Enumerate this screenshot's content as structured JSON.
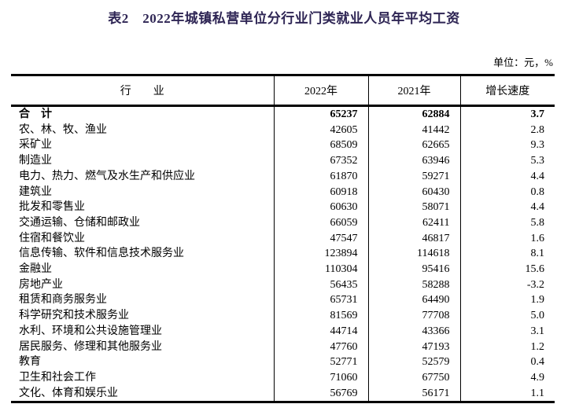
{
  "colors": {
    "title_text": "#2e2554",
    "body_text": "#000000",
    "rule": "#000000"
  },
  "title": "表2　2022年城镇私营单位分行业门类就业人员年平均工资",
  "unit_note": "单位：元，%",
  "table": {
    "columns": [
      "行　　业",
      "2022年",
      "2021年",
      "增长速度"
    ],
    "rows": [
      {
        "industry": "合　计",
        "y2022": "65237",
        "y2021": "62884",
        "growth": "3.7",
        "bold": true
      },
      {
        "industry": "农、林、牧、渔业",
        "y2022": "42605",
        "y2021": "41442",
        "growth": "2.8",
        "bold": false
      },
      {
        "industry": "采矿业",
        "y2022": "68509",
        "y2021": "62665",
        "growth": "9.3",
        "bold": false
      },
      {
        "industry": "制造业",
        "y2022": "67352",
        "y2021": "63946",
        "growth": "5.3",
        "bold": false
      },
      {
        "industry": "电力、热力、燃气及水生产和供应业",
        "y2022": "61870",
        "y2021": "59271",
        "growth": "4.4",
        "bold": false
      },
      {
        "industry": "建筑业",
        "y2022": "60918",
        "y2021": "60430",
        "growth": "0.8",
        "bold": false
      },
      {
        "industry": "批发和零售业",
        "y2022": "60630",
        "y2021": "58071",
        "growth": "4.4",
        "bold": false
      },
      {
        "industry": "交通运输、仓储和邮政业",
        "y2022": "66059",
        "y2021": "62411",
        "growth": "5.8",
        "bold": false
      },
      {
        "industry": "住宿和餐饮业",
        "y2022": "47547",
        "y2021": "46817",
        "growth": "1.6",
        "bold": false
      },
      {
        "industry": "信息传输、软件和信息技术服务业",
        "y2022": "123894",
        "y2021": "114618",
        "growth": "8.1",
        "bold": false
      },
      {
        "industry": "金融业",
        "y2022": "110304",
        "y2021": "95416",
        "growth": "15.6",
        "bold": false
      },
      {
        "industry": "房地产业",
        "y2022": "56435",
        "y2021": "58288",
        "growth": "-3.2",
        "bold": false
      },
      {
        "industry": "租赁和商务服务业",
        "y2022": "65731",
        "y2021": "64490",
        "growth": "1.9",
        "bold": false
      },
      {
        "industry": "科学研究和技术服务业",
        "y2022": "81569",
        "y2021": "77708",
        "growth": "5.0",
        "bold": false
      },
      {
        "industry": "水利、环境和公共设施管理业",
        "y2022": "44714",
        "y2021": "43366",
        "growth": "3.1",
        "bold": false
      },
      {
        "industry": "居民服务、修理和其他服务业",
        "y2022": "47760",
        "y2021": "47193",
        "growth": "1.2",
        "bold": false
      },
      {
        "industry": "教育",
        "y2022": "52771",
        "y2021": "52579",
        "growth": "0.4",
        "bold": false
      },
      {
        "industry": "卫生和社会工作",
        "y2022": "71060",
        "y2021": "67750",
        "growth": "4.9",
        "bold": false
      },
      {
        "industry": "文化、体育和娱乐业",
        "y2022": "56769",
        "y2021": "56171",
        "growth": "1.1",
        "bold": false
      }
    ]
  },
  "chart_data": {
    "type": "table",
    "title": "表2　2022年城镇私营单位分行业门类就业人员年平均工资",
    "unit": "元，%",
    "categories": [
      "合计",
      "农、林、牧、渔业",
      "采矿业",
      "制造业",
      "电力、热力、燃气及水生产和供应业",
      "建筑业",
      "批发和零售业",
      "交通运输、仓储和邮政业",
      "住宿和餐饮业",
      "信息传输、软件和信息技术服务业",
      "金融业",
      "房地产业",
      "租赁和商务服务业",
      "科学研究和技术服务业",
      "水利、环境和公共设施管理业",
      "居民服务、修理和其他服务业",
      "教育",
      "卫生和社会工作",
      "文化、体育和娱乐业"
    ],
    "series": [
      {
        "name": "2022年",
        "values": [
          65237,
          42605,
          68509,
          67352,
          61870,
          60918,
          60630,
          66059,
          47547,
          123894,
          110304,
          56435,
          65731,
          81569,
          44714,
          47760,
          52771,
          71060,
          56769
        ]
      },
      {
        "name": "2021年",
        "values": [
          62884,
          41442,
          62665,
          63946,
          59271,
          60430,
          58071,
          62411,
          46817,
          114618,
          95416,
          58288,
          64490,
          77708,
          43366,
          47193,
          52579,
          67750,
          56171
        ]
      },
      {
        "name": "增长速度",
        "values": [
          3.7,
          2.8,
          9.3,
          5.3,
          4.4,
          0.8,
          4.4,
          5.8,
          1.6,
          8.1,
          15.6,
          -3.2,
          1.9,
          5.0,
          3.1,
          1.2,
          0.4,
          4.9,
          1.1
        ]
      }
    ]
  }
}
